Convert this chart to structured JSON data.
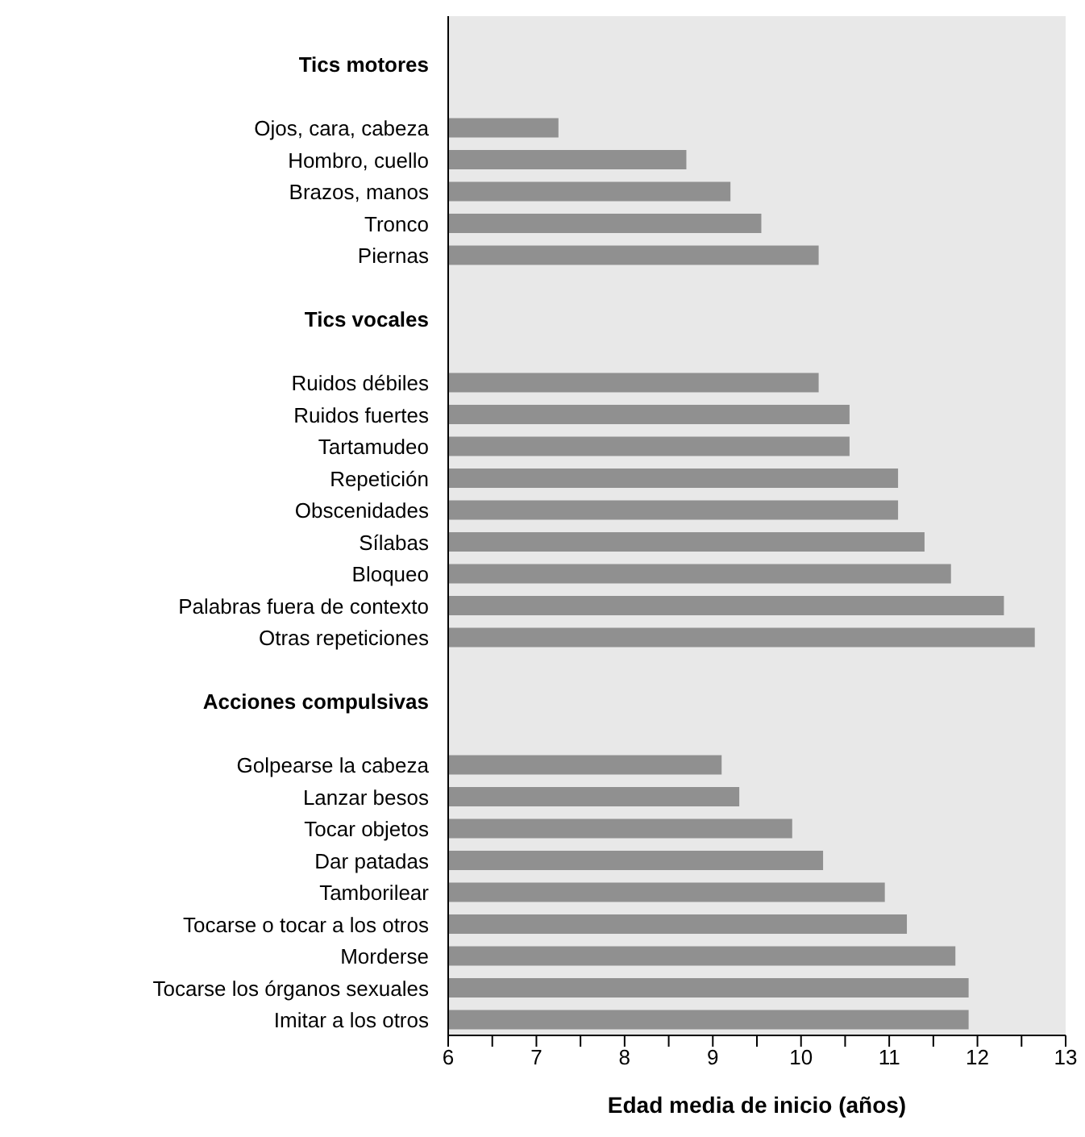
{
  "chart_data": {
    "type": "bar",
    "orientation": "horizontal",
    "xlabel": "Edad media de inicio (años)",
    "categories": [
      null,
      "Tics motores",
      null,
      "Ojos, cara, cabeza",
      "Hombro, cuello",
      "Brazos, manos",
      "Tronco",
      "Piernas",
      null,
      "Tics vocales",
      null,
      "Ruidos débiles",
      "Ruidos fuertes",
      "Tartamudeo",
      "Repetición",
      "Obscenidades",
      "Sílabas",
      "Bloqueo",
      "Palabras fuera de contexto",
      "Otras repeticiones",
      null,
      "Acciones compulsivas",
      null,
      "Golpearse la cabeza",
      "Lanzar besos",
      "Tocar objetos",
      "Dar patadas",
      "Tamborilear",
      "Tocarse o tocar a los otros",
      "Morderse",
      "Tocarse los órganos sexuales",
      "Imitar a los otros"
    ],
    "values": [
      null,
      null,
      null,
      7.25,
      8.7,
      9.2,
      9.55,
      10.2,
      null,
      null,
      null,
      10.2,
      10.55,
      10.55,
      11.1,
      11.1,
      11.4,
      11.7,
      12.3,
      12.65,
      null,
      null,
      null,
      9.1,
      9.3,
      9.9,
      10.25,
      10.95,
      11.2,
      11.75,
      11.9,
      11.9
    ],
    "color": "#909090",
    "xlim": [
      6,
      13
    ],
    "xticks": [
      6,
      {
        "value": 6.5,
        "label": null
      },
      7,
      {
        "value": 7.5,
        "label": null
      },
      8,
      {
        "value": 8.5,
        "label": null
      },
      9,
      {
        "value": 9.5,
        "label": null
      },
      10,
      {
        "value": 10.5,
        "label": null
      },
      11,
      {
        "value": 11.5,
        "label": null
      },
      12,
      {
        "value": 12.5,
        "label": null
      },
      13
    ],
    "grid": false,
    "legend": false
  }
}
